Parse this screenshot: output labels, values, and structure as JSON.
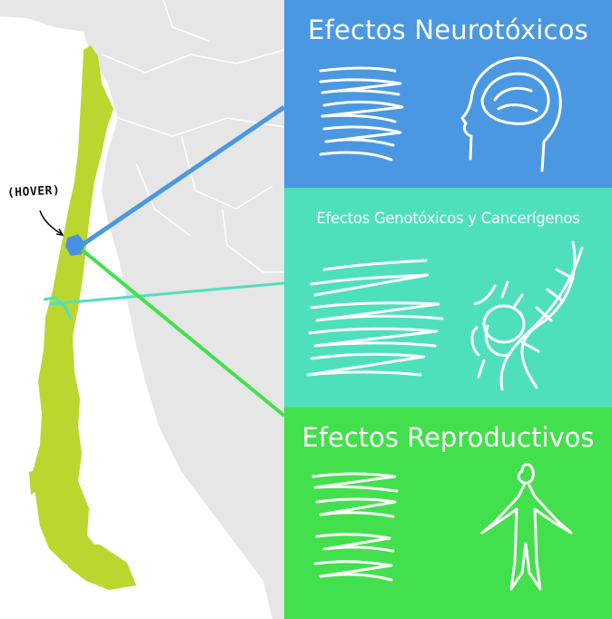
{
  "map": {
    "hover_label": "(HOVER)",
    "colors": {
      "country": "#bcd630",
      "neighbors": "#e6e6e6",
      "ocean": "#ffffff",
      "hover_region": "#4a90e2",
      "link_neuro": "#4a98e2",
      "link_geno": "#4ee0bd",
      "link_repro": "#43e04d"
    }
  },
  "panels": {
    "neuro": {
      "title": "Efectos Neurotóxicos",
      "color": "#4a98e2",
      "icon": "head-brain-icon"
    },
    "geno": {
      "title": "Efectos Genotóxicos y Cancerígenos",
      "color": "#4ee0bd",
      "icon": "dna-cell-icon"
    },
    "repro": {
      "title": "Efectos Reproductivos",
      "color": "#43e04d",
      "icon": "human-figure-icon"
    }
  }
}
